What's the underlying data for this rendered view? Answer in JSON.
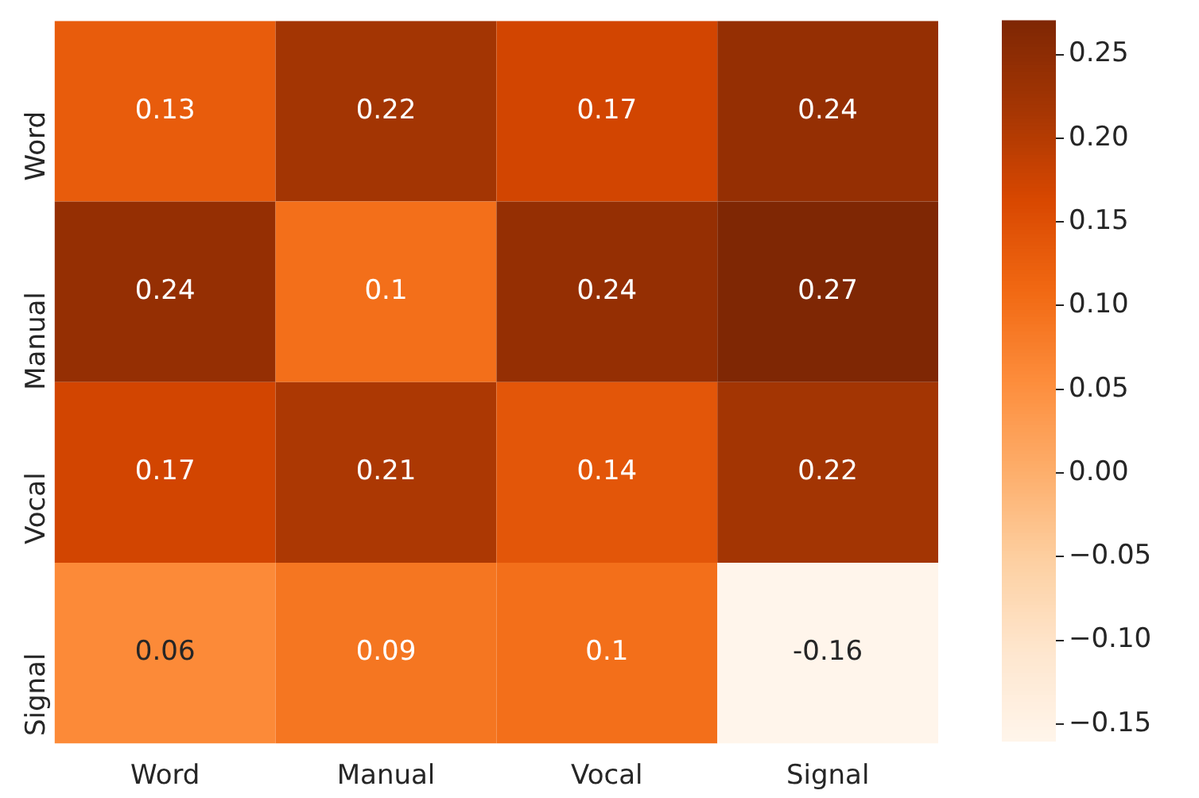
{
  "chart_data": {
    "type": "heatmap",
    "categories": [
      "Word",
      "Manual",
      "Vocal",
      "Signal"
    ],
    "y_categories": [
      "Word",
      "Manual",
      "Vocal",
      "Signal"
    ],
    "cells": [
      [
        0.13,
        0.22,
        0.17,
        0.24
      ],
      [
        0.24,
        0.1,
        0.24,
        0.27
      ],
      [
        0.17,
        0.21,
        0.14,
        0.22
      ],
      [
        0.06,
        0.09,
        0.1,
        -0.16
      ]
    ],
    "data_labels": true,
    "clim": [
      -0.16,
      0.27
    ],
    "cticks": [
      {
        "value": -0.15,
        "label": "−0.15"
      },
      {
        "value": -0.1,
        "label": "−0.10"
      },
      {
        "value": -0.05,
        "label": "−0.05"
      },
      {
        "value": 0,
        "label": "0.00"
      },
      {
        "value": 0.05,
        "label": "0.05"
      },
      {
        "value": 0.1,
        "label": "0.10"
      },
      {
        "value": 0.15,
        "label": "0.15"
      },
      {
        "value": 0.2,
        "label": "0.20"
      },
      {
        "value": 0.25,
        "label": "0.25"
      }
    ]
  }
}
